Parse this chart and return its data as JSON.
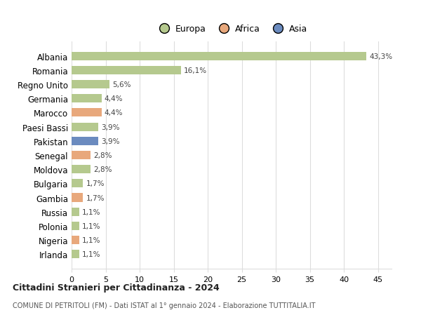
{
  "countries": [
    "Albania",
    "Romania",
    "Regno Unito",
    "Germania",
    "Marocco",
    "Paesi Bassi",
    "Pakistan",
    "Senegal",
    "Moldova",
    "Bulgaria",
    "Gambia",
    "Russia",
    "Polonia",
    "Nigeria",
    "Irlanda"
  ],
  "values": [
    43.3,
    16.1,
    5.6,
    4.4,
    4.4,
    3.9,
    3.9,
    2.8,
    2.8,
    1.7,
    1.7,
    1.1,
    1.1,
    1.1,
    1.1
  ],
  "labels": [
    "43,3%",
    "16,1%",
    "5,6%",
    "4,4%",
    "4,4%",
    "3,9%",
    "3,9%",
    "2,8%",
    "2,8%",
    "1,7%",
    "1,7%",
    "1,1%",
    "1,1%",
    "1,1%",
    "1,1%"
  ],
  "continent": [
    "Europa",
    "Europa",
    "Europa",
    "Europa",
    "Africa",
    "Europa",
    "Asia",
    "Africa",
    "Europa",
    "Europa",
    "Africa",
    "Europa",
    "Europa",
    "Africa",
    "Europa"
  ],
  "colors": {
    "Europa": "#b5c98e",
    "Africa": "#e8a87c",
    "Asia": "#6b8bbf"
  },
  "xlim": [
    0,
    47
  ],
  "xticks": [
    0,
    5,
    10,
    15,
    20,
    25,
    30,
    35,
    40,
    45
  ],
  "title": "Cittadini Stranieri per Cittadinanza - 2024",
  "subtitle": "COMUNE DI PETRITOLI (FM) - Dati ISTAT al 1° gennaio 2024 - Elaborazione TUTTITALIA.IT",
  "bg_color": "#ffffff",
  "grid_color": "#dddddd"
}
